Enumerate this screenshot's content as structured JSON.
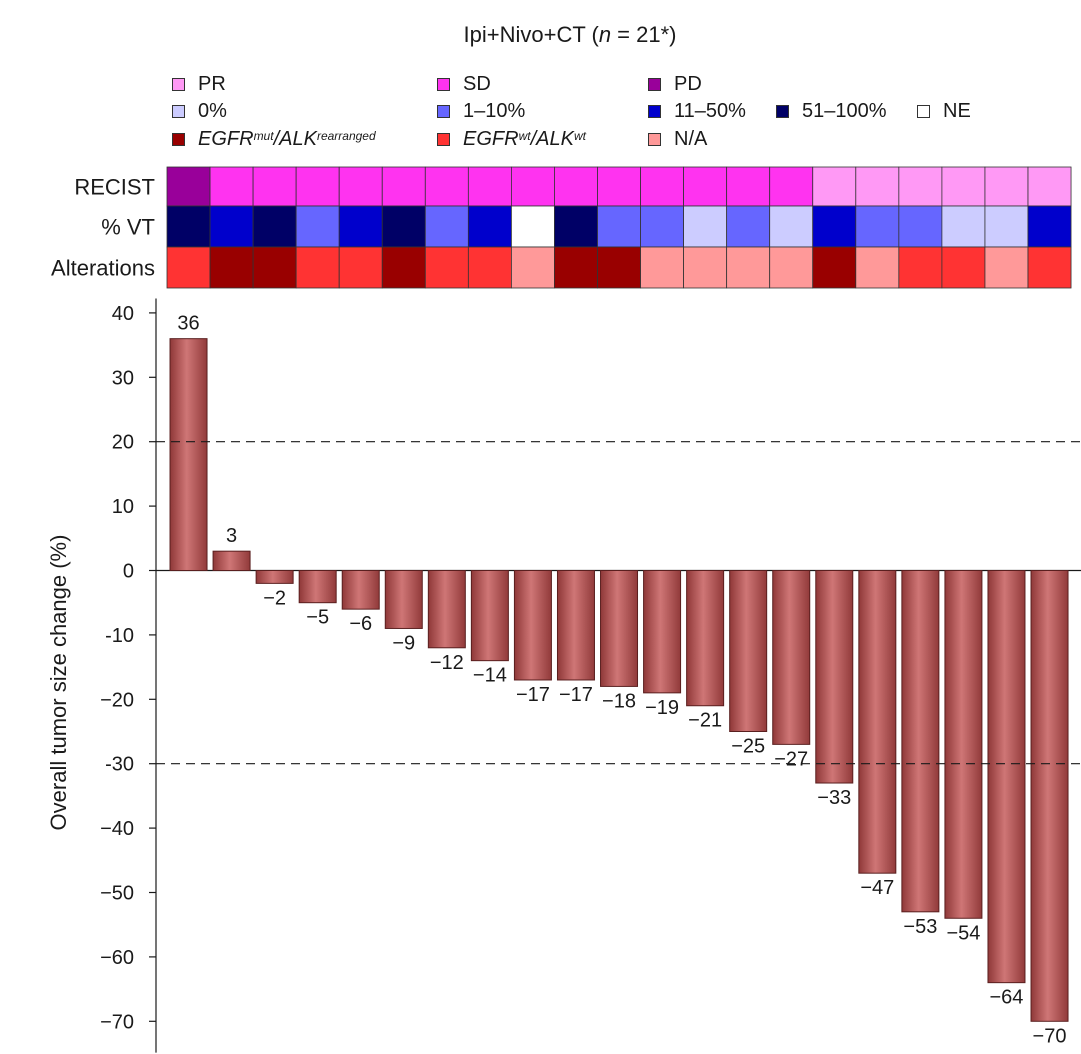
{
  "chart_data": {
    "type": "bar",
    "title_prefix": "Ipi+Nivo+CT (",
    "title_n": "n",
    "title_suffix": " = 21*)",
    "ylabel": "Overall tumor size change (%)",
    "ylim": [
      -73,
      41
    ],
    "yticks": [
      40,
      30,
      20,
      10,
      0,
      -10,
      -20,
      -30,
      -40,
      -50,
      -60,
      -70
    ],
    "ytick_labels": [
      "40",
      "30",
      "20",
      "10",
      "0",
      "-10",
      "−20",
      "-30",
      "−40",
      "−50",
      "−60",
      "−70"
    ],
    "reference_lines": [
      20,
      -30
    ],
    "values": [
      36,
      3,
      -2,
      -5,
      -6,
      -9,
      -12,
      -14,
      -17,
      -17,
      -18,
      -19,
      -21,
      -25,
      -27,
      -33,
      -47,
      -53,
      -54,
      -64,
      -70
    ],
    "value_labels": [
      "36",
      "3",
      "−2",
      "−5",
      "−6",
      "−9",
      "−12",
      "−14",
      "−17",
      "−17",
      "−18",
      "−19",
      "−21",
      "−25",
      "−27",
      "−33",
      "−47",
      "−53",
      "−54",
      "−64",
      "−70"
    ],
    "bar_color": "#b85c5c",
    "heatmap_rows": [
      {
        "label": "RECIST",
        "values": [
          "PD",
          "SD",
          "SD",
          "SD",
          "SD",
          "SD",
          "SD",
          "SD",
          "SD",
          "SD",
          "SD",
          "SD",
          "SD",
          "SD",
          "SD",
          "PR",
          "PR",
          "PR",
          "PR",
          "PR",
          "PR"
        ]
      },
      {
        "label": "% VT",
        "values": [
          "51-100",
          "11-50",
          "51-100",
          "1-10",
          "11-50",
          "51-100",
          "1-10",
          "11-50",
          "NE",
          "51-100",
          "1-10",
          "1-10",
          "0",
          "1-10",
          "0",
          "11-50",
          "1-10",
          "1-10",
          "0",
          "0",
          "11-50"
        ]
      },
      {
        "label": "Alterations",
        "values": [
          "wt",
          "mut",
          "mut",
          "wt",
          "wt",
          "mut",
          "wt",
          "wt",
          "na",
          "mut",
          "mut",
          "na",
          "na",
          "na",
          "na",
          "mut",
          "na",
          "wt",
          "wt",
          "na",
          "wt"
        ]
      }
    ],
    "category_colors": {
      "PR": "#ff99f5",
      "SD": "#ff33f0",
      "PD": "#99009a",
      "0": "#ccccff",
      "1-10": "#6666ff",
      "11-50": "#0000cc",
      "51-100": "#000066",
      "NE": "#ffffff",
      "mut": "#990000",
      "wt": "#ff3333",
      "na": "#ff9999"
    },
    "legend": [
      {
        "key": "PR",
        "label": "PR"
      },
      {
        "key": "SD",
        "label": "SD"
      },
      {
        "key": "PD",
        "label": "PD"
      },
      {
        "key": "0",
        "label": "0%"
      },
      {
        "key": "1-10",
        "label": "1–10%"
      },
      {
        "key": "11-50",
        "label": "11–50%"
      },
      {
        "key": "51-100",
        "label": "51–100%"
      },
      {
        "key": "NE",
        "label": "NE"
      },
      {
        "key": "mut",
        "gene1": "EGFR",
        "sup1": "mut",
        "sep": "/",
        "gene2": "ALK",
        "sup2": "rearranged"
      },
      {
        "key": "wt",
        "gene1": "EGFR",
        "sup1": "wt",
        "sep": "/",
        "gene2": "ALK",
        "sup2": "wt"
      },
      {
        "key": "na",
        "label": "N/A"
      }
    ]
  }
}
